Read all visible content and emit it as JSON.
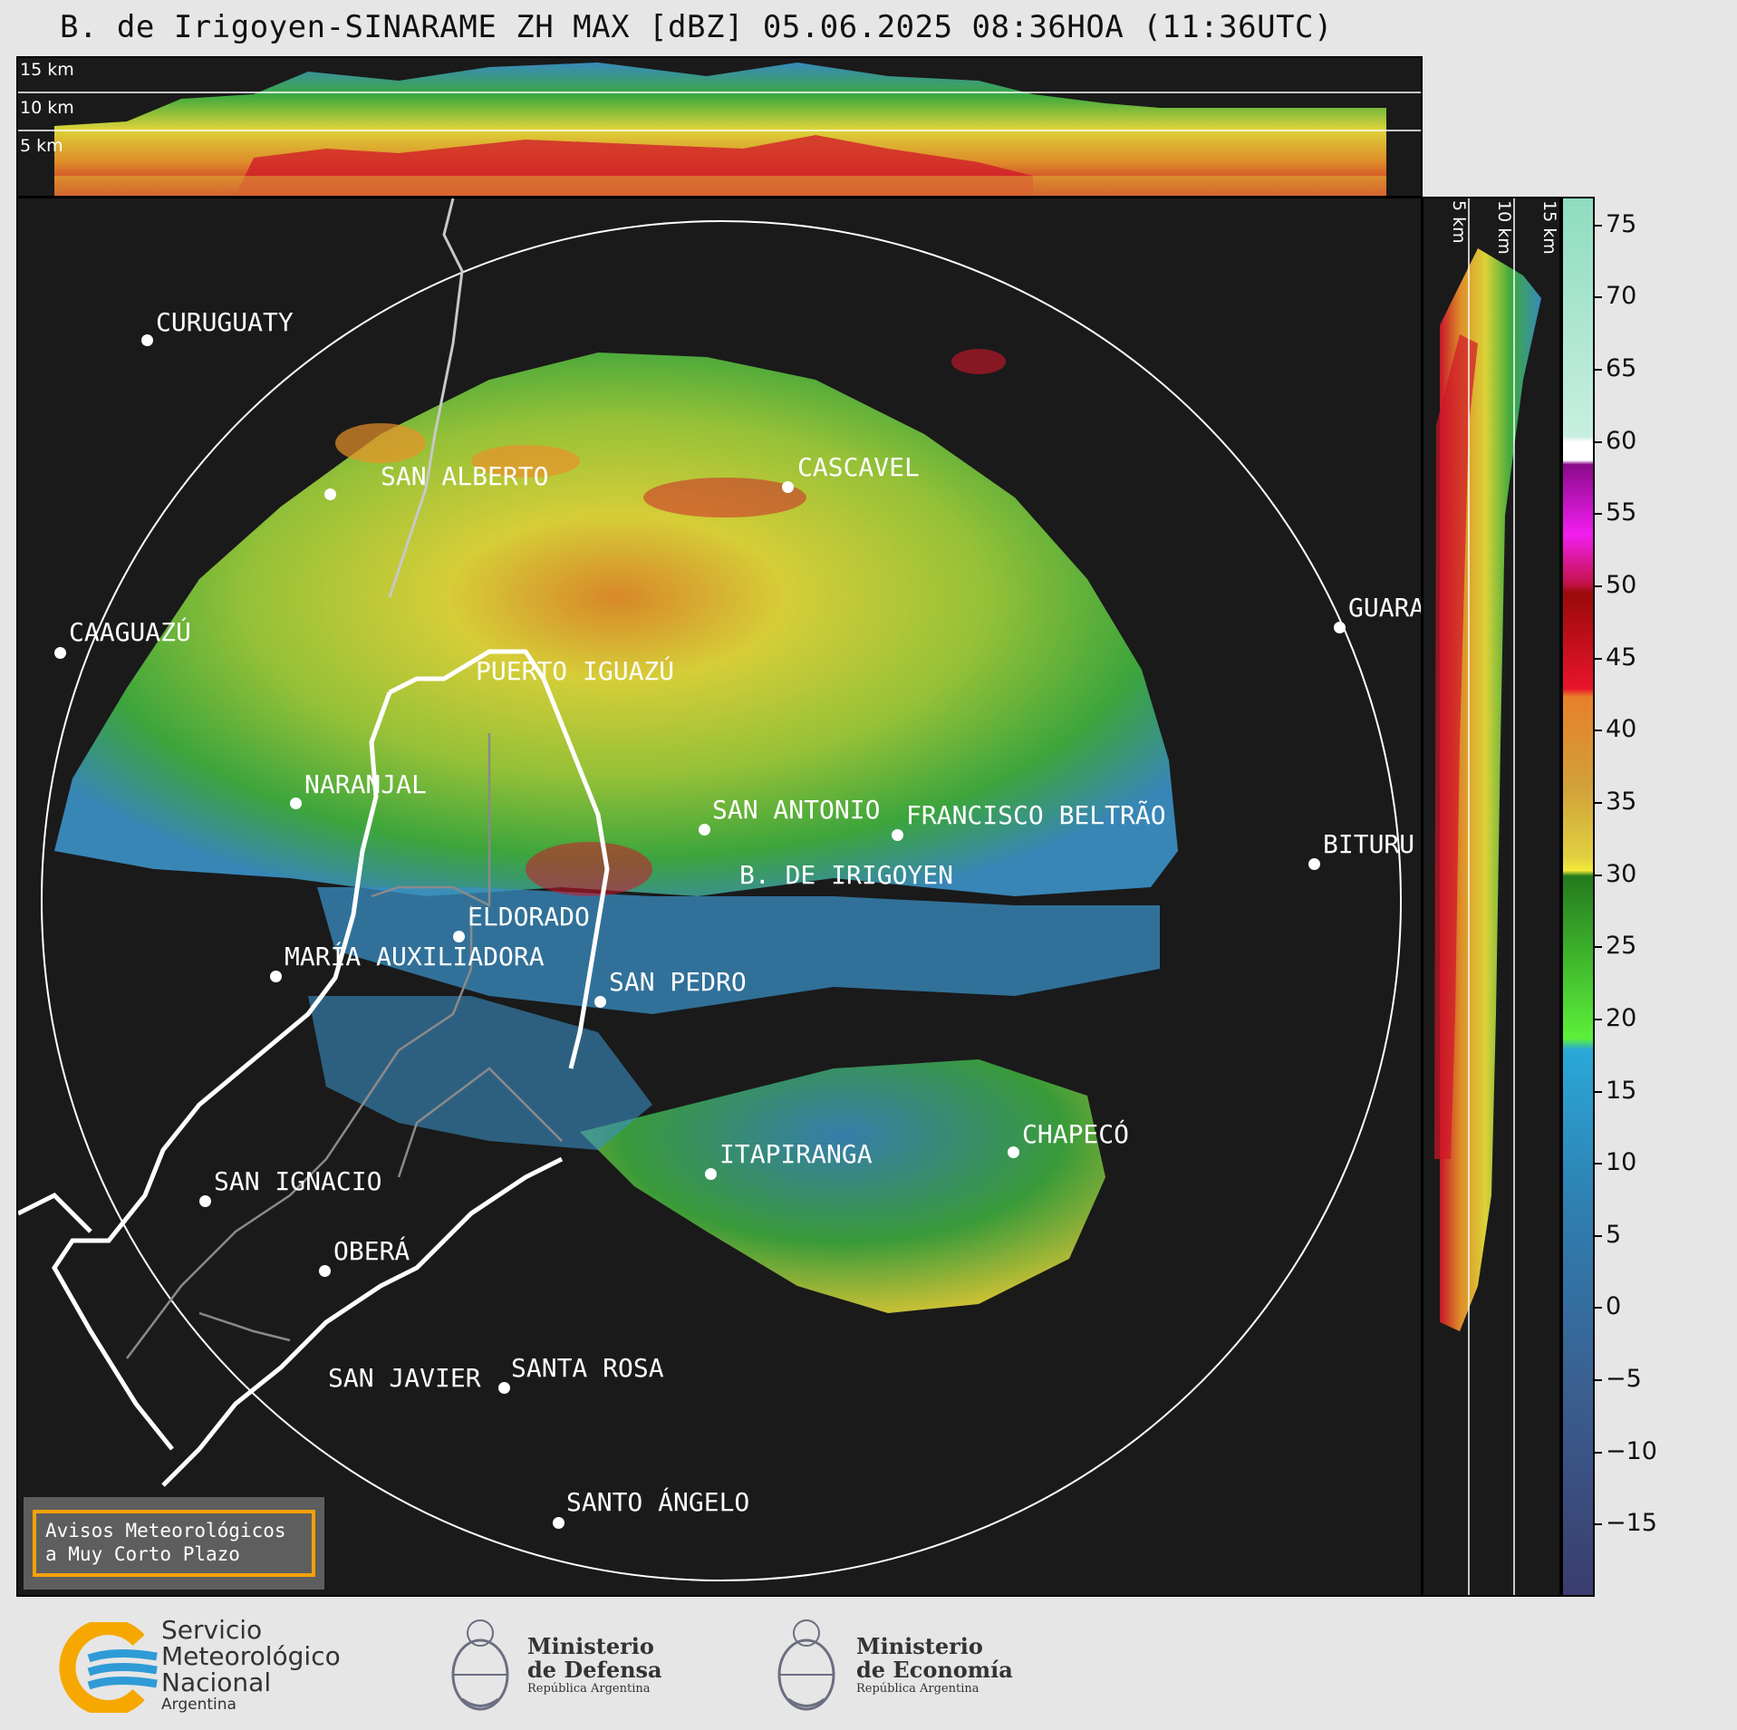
{
  "title": "B. de Irigoyen-SINARAME ZH MAX [dBZ] 05.06.2025 08:36HOA (11:36UTC)",
  "height_levels": [
    "15 km",
    "10 km",
    "5 km"
  ],
  "side_levels": [
    "5 km",
    "10 km",
    "15 km"
  ],
  "cities": [
    {
      "name": "CURUGUATY"
    },
    {
      "name": "SAN ALBERTO"
    },
    {
      "name": "CASCAVEL"
    },
    {
      "name": "CAAGUAZÚ"
    },
    {
      "name": "GUARA"
    },
    {
      "name": "PUERTO IGUAZÚ"
    },
    {
      "name": "NARANJAL"
    },
    {
      "name": "SAN ANTONIO"
    },
    {
      "name": "FRANCISCO BELTRÃO"
    },
    {
      "name": "BITURU"
    },
    {
      "name": "B. DE IRIGOYEN"
    },
    {
      "name": "ELDORADO"
    },
    {
      "name": "MARÍA AUXILIADORA"
    },
    {
      "name": "SAN PEDRO"
    },
    {
      "name": "CHAPECÓ"
    },
    {
      "name": "ITAPIRANGA"
    },
    {
      "name": "SAN IGNACIO"
    },
    {
      "name": "OBERÁ"
    },
    {
      "name": "SAN JAVIER"
    },
    {
      "name": "SANTA ROSA"
    },
    {
      "name": "SANTO ÁNGELO"
    }
  ],
  "notice": {
    "line1": "Avisos Meteorológicos",
    "line2": "a Muy Corto Plazo"
  },
  "colorbar": {
    "unit": "dBZ",
    "ticks": [
      "75",
      "70",
      "65",
      "60",
      "55",
      "50",
      "45",
      "40",
      "35",
      "30",
      "25",
      "20",
      "15",
      "10",
      "5",
      "0",
      "−5",
      "−10",
      "−15"
    ],
    "range": [
      -20,
      77
    ],
    "colors": {
      "dark": "#1a1a1a",
      "blue": "#3a8fc4",
      "green": "#3fb13f",
      "yellow": "#e6dd3a",
      "orange": "#e8912a",
      "red": "#d0162a",
      "magenta": "#c21fb0",
      "white": "#ffffff",
      "teal": "#90dcc0"
    }
  },
  "footer": {
    "smn_line1": "Servicio",
    "smn_line2": "Meteorológico",
    "smn_line3": "Nacional",
    "smn_line4": "Argentina",
    "defensa_line1": "Ministerio",
    "defensa_line2": "de Defensa",
    "defensa_line3": "República Argentina",
    "economia_line1": "Ministerio",
    "economia_line2": "de Economía",
    "economia_line3": "República Argentina"
  }
}
